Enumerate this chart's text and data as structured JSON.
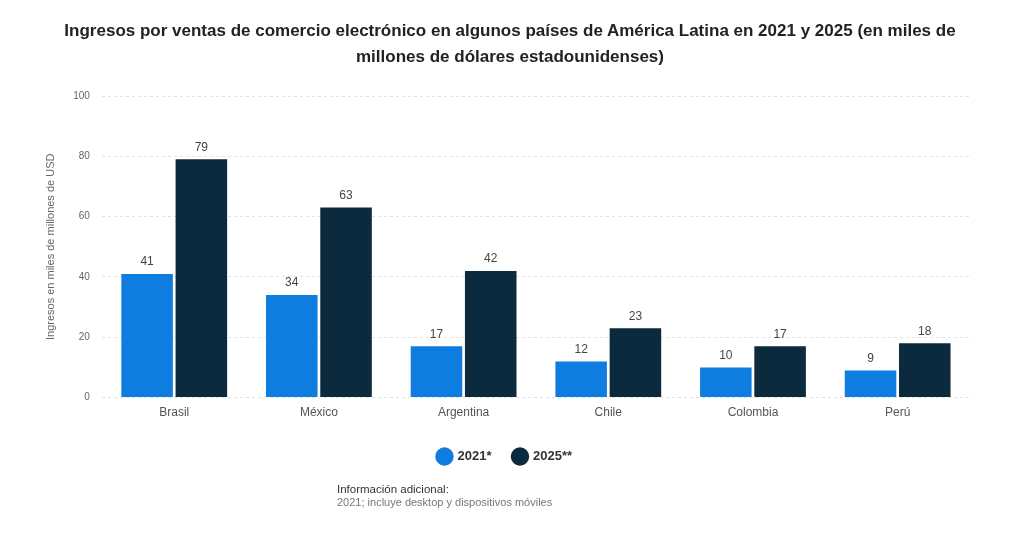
{
  "chart_data": {
    "type": "bar",
    "title": "Ingresos por ventas de comercio electrónico en algunos países de América Latina en 2021 y 2025 (en miles de millones de dólares estadounidenses)",
    "ylabel": "Ingresos en miles de millones de USD",
    "categories": [
      "Brasil",
      "México",
      "Argentina",
      "Chile",
      "Colombia",
      "Perú"
    ],
    "series": [
      {
        "name": "2021*",
        "color": "#0f7ddf",
        "values": [
          41,
          34,
          17,
          12,
          10,
          9
        ]
      },
      {
        "name": "2025**",
        "color": "#0c2a3e",
        "values": [
          79,
          63,
          42,
          23,
          17,
          18
        ]
      }
    ],
    "ylim": [
      0,
      100
    ],
    "yticks": [
      0,
      20,
      40,
      60,
      80,
      100
    ],
    "grid": "y",
    "legend": "bottom",
    "data_labels": true,
    "annotations": [
      "Información adicional:",
      "2021; incluye desktop y dispositivos móviles"
    ]
  }
}
